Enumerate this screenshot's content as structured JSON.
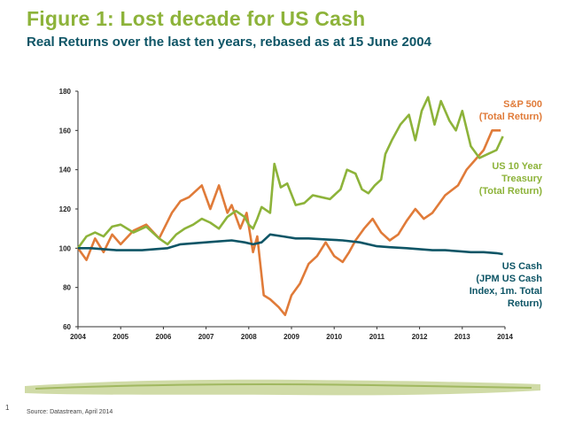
{
  "header": {
    "title": "Figure 1: Lost decade for US Cash",
    "subtitle": "Real Returns over the last ten years, rebased as at 15 June 2004"
  },
  "footer": {
    "page_number": "1",
    "source": "Source: Datastream, April 2014"
  },
  "colors": {
    "title": "#8db33a",
    "subtitle": "#0e5566",
    "sp500": "#e07b39",
    "treasury": "#8db33a",
    "cash": "#0e5566",
    "brush": "#a9be5f"
  },
  "chart_data": {
    "type": "line",
    "title": "Real Returns over the last ten years, rebased as at 15 June 2004",
    "xlabel": "",
    "ylabel": "",
    "xlim": [
      2004,
      2014
    ],
    "ylim": [
      60,
      180
    ],
    "grid": false,
    "x_ticks": [
      "2004",
      "2005",
      "2006",
      "2007",
      "2008",
      "2009",
      "2010",
      "2011",
      "2012",
      "2013",
      "2014"
    ],
    "y_ticks": [
      "60",
      "80",
      "100",
      "120",
      "140",
      "160",
      "180"
    ],
    "series": [
      {
        "name": "S&P 500 (Total Return)",
        "label_lines": [
          "S&P 500",
          "(Total Return)"
        ],
        "color": "#e07b39",
        "x": [
          2004.0,
          2004.2,
          2004.4,
          2004.6,
          2004.8,
          2005.0,
          2005.3,
          2005.6,
          2005.9,
          2006.2,
          2006.4,
          2006.6,
          2006.9,
          2007.1,
          2007.3,
          2007.5,
          2007.6,
          2007.8,
          2007.95,
          2008.1,
          2008.2,
          2008.35,
          2008.5,
          2008.7,
          2008.85,
          2009.0,
          2009.2,
          2009.4,
          2009.6,
          2009.8,
          2010.0,
          2010.2,
          2010.35,
          2010.5,
          2010.7,
          2010.9,
          2011.1,
          2011.3,
          2011.5,
          2011.7,
          2011.9,
          2012.1,
          2012.3,
          2012.6,
          2012.9,
          2013.1,
          2013.3,
          2013.5,
          2013.7,
          2013.9
        ],
        "values": [
          100,
          94,
          105,
          98,
          107,
          102,
          109,
          112,
          105,
          118,
          124,
          126,
          132,
          120,
          132,
          118,
          122,
          110,
          118,
          98,
          106,
          76,
          74,
          70,
          66,
          76,
          82,
          92,
          96,
          103,
          96,
          93,
          98,
          104,
          110,
          115,
          108,
          104,
          107,
          114,
          120,
          115,
          118,
          127,
          132,
          140,
          145,
          150,
          160,
          160
        ]
      },
      {
        "name": "US 10 Year Treasury (Total Return)",
        "label_lines": [
          "US 10 Year",
          "Treasury",
          "(Total Return)"
        ],
        "color": "#8db33a",
        "x": [
          2004.0,
          2004.2,
          2004.4,
          2004.6,
          2004.8,
          2005.0,
          2005.3,
          2005.6,
          2005.9,
          2006.1,
          2006.3,
          2006.5,
          2006.7,
          2006.9,
          2007.1,
          2007.3,
          2007.5,
          2007.7,
          2007.9,
          2008.0,
          2008.1,
          2008.2,
          2008.3,
          2008.5,
          2008.6,
          2008.75,
          2008.9,
          2009.1,
          2009.3,
          2009.5,
          2009.7,
          2009.9,
          2010.0,
          2010.15,
          2010.3,
          2010.5,
          2010.65,
          2010.8,
          2010.95,
          2011.1,
          2011.2,
          2011.35,
          2011.55,
          2011.75,
          2011.9,
          2012.05,
          2012.2,
          2012.35,
          2012.5,
          2012.7,
          2012.85,
          2013.0,
          2013.2,
          2013.4,
          2013.6,
          2013.8,
          2013.95
        ],
        "values": [
          100,
          106,
          108,
          106,
          111,
          112,
          108,
          111,
          105,
          102,
          107,
          110,
          112,
          115,
          113,
          110,
          116,
          119,
          116,
          112,
          110,
          115,
          121,
          118,
          143,
          131,
          133,
          122,
          123,
          127,
          126,
          125,
          127,
          130,
          140,
          138,
          130,
          128,
          132,
          135,
          148,
          155,
          163,
          168,
          155,
          170,
          177,
          163,
          175,
          165,
          160,
          170,
          152,
          146,
          148,
          150,
          157
        ]
      },
      {
        "name": "US Cash (JPM US Cash Index, 1m. Total Return)",
        "label_lines": [
          "US Cash",
          "(JPM US Cash",
          "Index, 1m. Total",
          "Return)"
        ],
        "color": "#0e5566",
        "x": [
          2004.0,
          2004.3,
          2004.6,
          2004.9,
          2005.2,
          2005.5,
          2005.8,
          2006.1,
          2006.4,
          2006.7,
          2007.0,
          2007.3,
          2007.6,
          2007.9,
          2008.1,
          2008.3,
          2008.5,
          2008.8,
          2009.1,
          2009.4,
          2009.8,
          2010.2,
          2010.6,
          2011.0,
          2011.3,
          2011.7,
          2012.0,
          2012.3,
          2012.6,
          2012.9,
          2013.2,
          2013.5,
          2013.8,
          2013.95
        ],
        "values": [
          100,
          100,
          99.5,
          99,
          99,
          99,
          99.5,
          100,
          102,
          102.5,
          103,
          103.5,
          104,
          103,
          102,
          103,
          107,
          106,
          105,
          105,
          104.5,
          104,
          103,
          101,
          100.5,
          100,
          99.5,
          99,
          99,
          98.5,
          98,
          98,
          97.5,
          97
        ]
      }
    ]
  }
}
